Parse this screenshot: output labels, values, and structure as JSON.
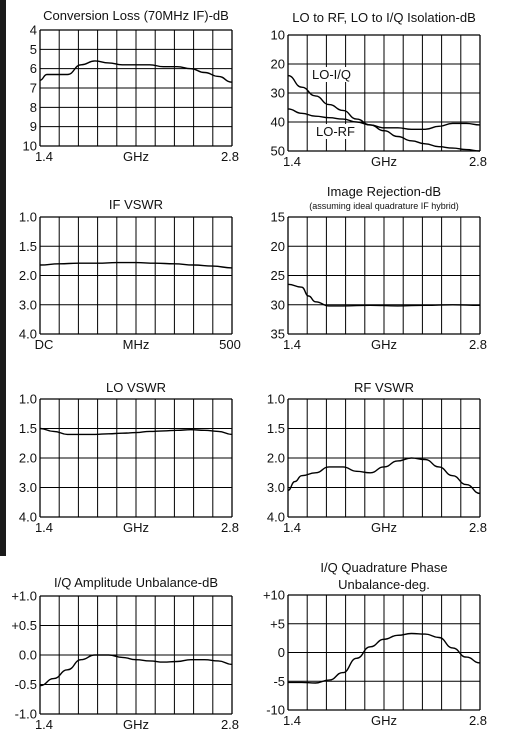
{
  "chart_data": [
    {
      "type": "line",
      "title": "Conversion Loss (70MHz IF)-dB",
      "subtitle": "",
      "x_ticks": [
        "1.4",
        "GHz",
        "2.8"
      ],
      "y_ticks": [
        "4",
        "5",
        "6",
        "7",
        "8",
        "9",
        "10"
      ],
      "xlim": [
        1.4,
        2.8
      ],
      "ylim": [
        4,
        10
      ],
      "y_inverted": true,
      "grid": true,
      "series": [
        {
          "x": [
            1.4,
            1.45,
            1.5,
            1.6,
            1.7,
            1.8,
            1.9,
            2.0,
            2.1,
            2.2,
            2.3,
            2.4,
            2.5,
            2.6,
            2.7,
            2.8
          ],
          "y": [
            6.6,
            6.3,
            6.3,
            6.3,
            5.8,
            5.6,
            5.7,
            5.8,
            5.8,
            5.8,
            5.9,
            5.9,
            6.0,
            6.2,
            6.4,
            6.7
          ]
        }
      ],
      "annotations": []
    },
    {
      "type": "line",
      "title": "LO to RF, LO to I/Q Isolation-dB",
      "subtitle": "",
      "x_ticks": [
        "1.4",
        "GHz",
        "2.8"
      ],
      "y_ticks": [
        "10",
        "20",
        "30",
        "40",
        "50"
      ],
      "xlim": [
        1.4,
        2.8
      ],
      "ylim": [
        10,
        50
      ],
      "y_inverted": true,
      "grid": true,
      "series": [
        {
          "x": [
            1.4,
            1.5,
            1.6,
            1.7,
            1.8,
            1.9,
            2.0,
            2.1,
            2.2,
            2.3,
            2.4,
            2.5,
            2.6,
            2.7,
            2.8
          ],
          "y": [
            24,
            28,
            31,
            34,
            36,
            39,
            41,
            43,
            45,
            46.5,
            47.5,
            48.5,
            49,
            49.5,
            50
          ]
        },
        {
          "x": [
            1.4,
            1.5,
            1.6,
            1.7,
            1.8,
            1.9,
            2.0,
            2.1,
            2.2,
            2.3,
            2.4,
            2.5,
            2.6,
            2.7,
            2.8
          ],
          "y": [
            35.5,
            37,
            38,
            38.5,
            39,
            40,
            41,
            42,
            42,
            42.5,
            42.5,
            41.5,
            40.5,
            40.5,
            41
          ]
        }
      ],
      "annotations": [
        "LO-I/Q",
        "LO-RF"
      ]
    },
    {
      "type": "line",
      "title": "IF VSWR",
      "subtitle": "",
      "x_ticks": [
        "DC",
        "MHz",
        "500"
      ],
      "y_ticks": [
        "1.0",
        "1.5",
        "2.0",
        "3.0",
        "4.0"
      ],
      "xlim": [
        0,
        500
      ],
      "ylim": [
        1.0,
        4.0
      ],
      "y_tick_levels": [
        0,
        1,
        2,
        3,
        4
      ],
      "y_inverted": true,
      "grid": true,
      "series": [
        {
          "x": [
            0,
            50,
            100,
            150,
            200,
            250,
            300,
            350,
            400,
            450,
            500
          ],
          "y": [
            1.82,
            1.8,
            1.79,
            1.79,
            1.78,
            1.78,
            1.79,
            1.8,
            1.82,
            1.84,
            1.87
          ],
          "level": [
            1.64,
            1.6,
            1.58,
            1.58,
            1.56,
            1.56,
            1.58,
            1.6,
            1.64,
            1.68,
            1.74
          ]
        }
      ],
      "annotations": []
    },
    {
      "type": "line",
      "title": "Image Rejection-dB",
      "subtitle": "(assuming ideal quadrature IF hybrid)",
      "x_ticks": [
        "1.4",
        "GHz",
        "2.8"
      ],
      "y_ticks": [
        "15",
        "20",
        "25",
        "30",
        "35"
      ],
      "xlim": [
        1.4,
        2.8
      ],
      "ylim": [
        15,
        35
      ],
      "y_inverted": true,
      "grid": true,
      "series": [
        {
          "x": [
            1.4,
            1.5,
            1.55,
            1.6,
            1.7,
            1.8,
            2.0,
            2.2,
            2.4,
            2.6,
            2.8
          ],
          "y": [
            26.5,
            27,
            28.5,
            29.5,
            30.2,
            30.2,
            30.1,
            30.2,
            30.1,
            30.0,
            30.1
          ]
        }
      ],
      "annotations": []
    },
    {
      "type": "line",
      "title": "LO VSWR",
      "subtitle": "",
      "x_ticks": [
        "1.4",
        "GHz",
        "2.8"
      ],
      "y_ticks": [
        "1.0",
        "1.5",
        "2.0",
        "3.0",
        "4.0"
      ],
      "xlim": [
        1.4,
        2.8
      ],
      "ylim": [
        1.0,
        4.0
      ],
      "y_tick_levels": [
        0,
        1,
        2,
        3,
        4
      ],
      "y_inverted": true,
      "grid": true,
      "series": [
        {
          "x": [
            1.4,
            1.5,
            1.6,
            1.7,
            1.8,
            1.9,
            2.0,
            2.1,
            2.2,
            2.3,
            2.4,
            2.5,
            2.6,
            2.7,
            2.8
          ],
          "y": [
            1.5,
            1.55,
            1.6,
            1.6,
            1.6,
            1.59,
            1.58,
            1.57,
            1.55,
            1.54,
            1.53,
            1.52,
            1.53,
            1.55,
            1.6
          ],
          "level": [
            1.0,
            1.1,
            1.2,
            1.2,
            1.2,
            1.18,
            1.16,
            1.14,
            1.1,
            1.08,
            1.06,
            1.04,
            1.06,
            1.1,
            1.2
          ]
        }
      ],
      "annotations": []
    },
    {
      "type": "line",
      "title": "RF VSWR",
      "subtitle": "",
      "x_ticks": [
        "1.4",
        "GHz",
        "2.8"
      ],
      "y_ticks": [
        "1.0",
        "1.5",
        "2.0",
        "3.0",
        "4.0"
      ],
      "xlim": [
        1.4,
        2.8
      ],
      "ylim": [
        1.0,
        4.0
      ],
      "y_tick_levels": [
        0,
        1,
        2,
        3,
        4
      ],
      "y_inverted": true,
      "grid": true,
      "series": [
        {
          "x": [
            1.4,
            1.45,
            1.5,
            1.6,
            1.7,
            1.8,
            1.9,
            2.0,
            2.1,
            2.2,
            2.3,
            2.4,
            2.5,
            2.6,
            2.7,
            2.8
          ],
          "y": [
            3.1,
            2.8,
            2.6,
            2.5,
            2.3,
            2.3,
            2.45,
            2.5,
            2.3,
            2.1,
            2.0,
            2.05,
            2.3,
            2.6,
            2.9,
            3.2
          ],
          "level": [
            3.1,
            2.8,
            2.6,
            2.5,
            2.3,
            2.3,
            2.45,
            2.5,
            2.3,
            2.1,
            2.0,
            2.05,
            2.3,
            2.6,
            2.9,
            3.2
          ]
        }
      ],
      "annotations": []
    },
    {
      "type": "line",
      "title": "I/Q Amplitude Unbalance-dB",
      "subtitle": "",
      "x_ticks": [
        "1.4",
        "GHz",
        "2.8"
      ],
      "y_ticks": [
        "+1.0",
        "+0.5",
        "0.0",
        "-0.5",
        "-1.0"
      ],
      "xlim": [
        1.4,
        2.8
      ],
      "ylim": [
        -1.0,
        1.0
      ],
      "y_inverted": false,
      "grid": true,
      "series": [
        {
          "x": [
            1.4,
            1.5,
            1.6,
            1.7,
            1.8,
            1.9,
            2.0,
            2.1,
            2.2,
            2.3,
            2.4,
            2.5,
            2.6,
            2.7,
            2.8
          ],
          "y": [
            -0.52,
            -0.4,
            -0.25,
            -0.08,
            0.0,
            0.0,
            -0.04,
            -0.08,
            -0.1,
            -0.12,
            -0.11,
            -0.08,
            -0.08,
            -0.1,
            -0.16
          ]
        }
      ],
      "annotations": []
    },
    {
      "type": "line",
      "title": "I/Q Quadrature Phase",
      "subtitle": "Unbalance-deg.",
      "x_ticks": [
        "1.4",
        "GHz",
        "2.8"
      ],
      "y_ticks": [
        "+10",
        "+5",
        "0",
        "-5",
        "-10"
      ],
      "xlim": [
        1.4,
        2.8
      ],
      "ylim": [
        -10,
        10
      ],
      "y_inverted": false,
      "grid": true,
      "series": [
        {
          "x": [
            1.4,
            1.5,
            1.6,
            1.7,
            1.8,
            1.9,
            2.0,
            2.1,
            2.2,
            2.3,
            2.4,
            2.5,
            2.6,
            2.7,
            2.8
          ],
          "y": [
            -5.2,
            -5.2,
            -5.3,
            -4.8,
            -3.5,
            -1.0,
            1.0,
            2.3,
            3.0,
            3.3,
            3.2,
            2.6,
            0.8,
            -0.8,
            -1.8
          ]
        }
      ],
      "annotations": []
    }
  ]
}
